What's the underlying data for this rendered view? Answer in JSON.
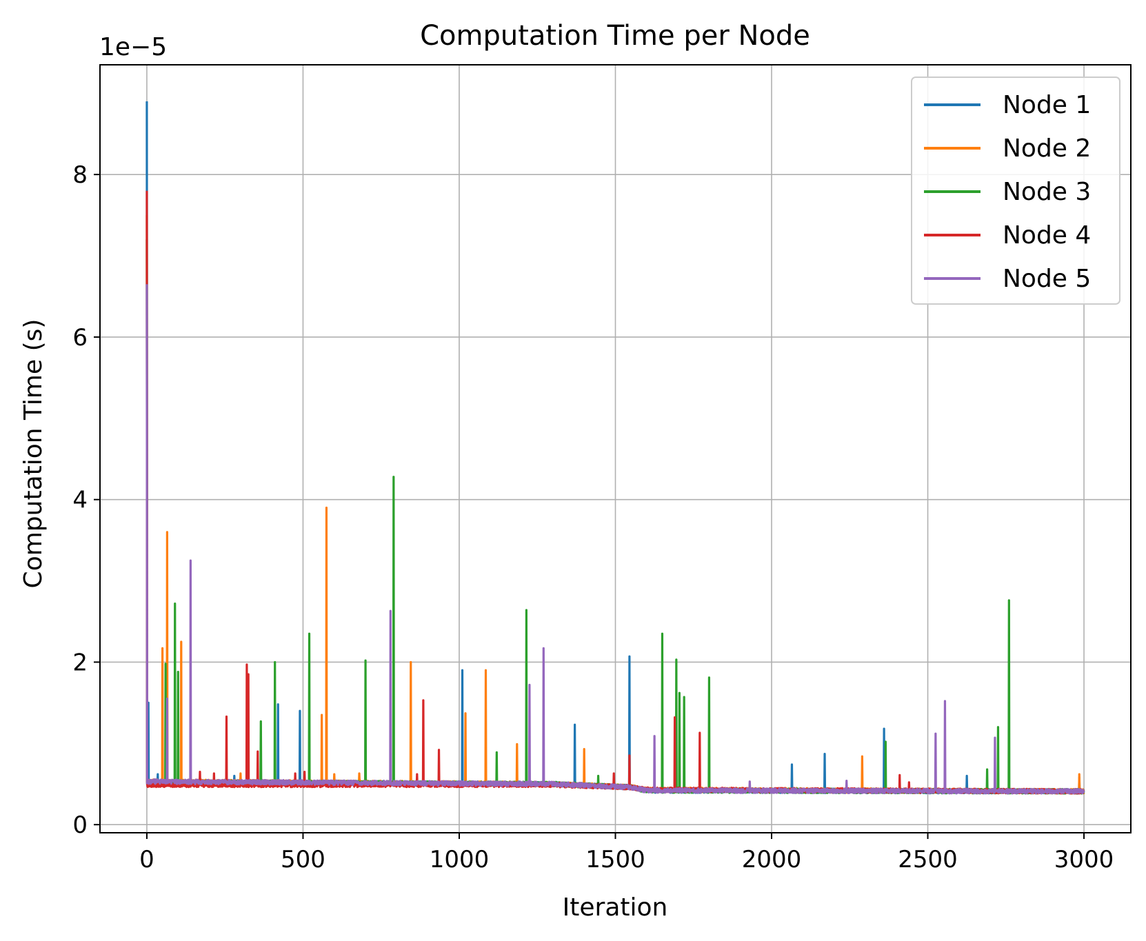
{
  "chart_data": {
    "type": "line",
    "title": "Computation Time per Node",
    "xlabel": "Iteration",
    "ylabel": "Computation Time (s)",
    "y_offset_label": "1e−5",
    "y_scale_factor": 1e-05,
    "xlim": [
      -150,
      3150
    ],
    "ylim": [
      -1e-06,
      9.35e-05
    ],
    "x_ticks": [
      0,
      500,
      1000,
      1500,
      2000,
      2500,
      3000
    ],
    "x_tick_labels": [
      "0",
      "500",
      "1000",
      "1500",
      "2000",
      "2500",
      "3000"
    ],
    "y_ticks": [
      0,
      2e-05,
      4e-05,
      6e-05,
      8e-05
    ],
    "y_tick_labels": [
      "0",
      "2",
      "4",
      "6",
      "8"
    ],
    "grid": true,
    "legend_position": "top-right",
    "n_iterations": 3000,
    "series": [
      {
        "name": "Node 1",
        "color": "#1f77b4",
        "baseline_segments": [
          [
            0,
            5.2e-06
          ],
          [
            1300,
            5e-06
          ],
          [
            1550,
            4.6e-06
          ],
          [
            1600,
            4.2e-06
          ],
          [
            3000,
            4.1e-06
          ]
        ],
        "spikes": [
          [
            0,
            8.9e-05
          ],
          [
            5,
            1.5e-05
          ],
          [
            35,
            6.2e-06
          ],
          [
            280,
            6e-06
          ],
          [
            420,
            1.48e-05
          ],
          [
            490,
            1.4e-05
          ],
          [
            1010,
            1.9e-05
          ],
          [
            1370,
            1.23e-05
          ],
          [
            1545,
            2.07e-05
          ],
          [
            2065,
            7.4e-06
          ],
          [
            2170,
            8.7e-06
          ],
          [
            2360,
            1.18e-05
          ],
          [
            2625,
            6e-06
          ],
          [
            2985,
            5.8e-06
          ]
        ]
      },
      {
        "name": "Node 2",
        "color": "#ff7f0e",
        "baseline_segments": [
          [
            0,
            5.3e-06
          ],
          [
            1300,
            5e-06
          ],
          [
            1550,
            4.6e-06
          ],
          [
            1600,
            4.3e-06
          ],
          [
            3000,
            4.1e-06
          ]
        ],
        "spikes": [
          [
            0,
            7.5e-05
          ],
          [
            50,
            2.17e-05
          ],
          [
            65,
            3.6e-05
          ],
          [
            110,
            2.25e-05
          ],
          [
            300,
            6.3e-06
          ],
          [
            560,
            1.35e-05
          ],
          [
            575,
            3.9e-05
          ],
          [
            600,
            6.2e-06
          ],
          [
            680,
            6.3e-06
          ],
          [
            845,
            2e-05
          ],
          [
            1020,
            1.37e-05
          ],
          [
            1085,
            1.9e-05
          ],
          [
            1185,
            9.9e-06
          ],
          [
            1400,
            9.3e-06
          ],
          [
            2290,
            8.4e-06
          ],
          [
            2985,
            6.2e-06
          ]
        ]
      },
      {
        "name": "Node 3",
        "color": "#2ca02c",
        "baseline_segments": [
          [
            0,
            5.2e-06
          ],
          [
            1300,
            5e-06
          ],
          [
            1550,
            4.6e-06
          ],
          [
            1600,
            4.2e-06
          ],
          [
            3000,
            4.1e-06
          ]
        ],
        "spikes": [
          [
            0,
            7.2e-05
          ],
          [
            60,
            1.98e-05
          ],
          [
            90,
            2.72e-05
          ],
          [
            100,
            1.88e-05
          ],
          [
            365,
            1.27e-05
          ],
          [
            410,
            2e-05
          ],
          [
            520,
            2.35e-05
          ],
          [
            700,
            2.02e-05
          ],
          [
            790,
            4.28e-05
          ],
          [
            1120,
            8.9e-06
          ],
          [
            1215,
            2.64e-05
          ],
          [
            1445,
            6e-06
          ],
          [
            1650,
            2.35e-05
          ],
          [
            1695,
            2.03e-05
          ],
          [
            1705,
            1.62e-05
          ],
          [
            1720,
            1.57e-05
          ],
          [
            1800,
            1.81e-05
          ],
          [
            2365,
            1.02e-05
          ],
          [
            2690,
            6.8e-06
          ],
          [
            2725,
            1.2e-05
          ],
          [
            2760,
            2.76e-05
          ]
        ]
      },
      {
        "name": "Node 4",
        "color": "#d62728",
        "baseline_segments": [
          [
            0,
            4.9e-06
          ],
          [
            1300,
            4.9e-06
          ],
          [
            1550,
            4.6e-06
          ],
          [
            1600,
            4.3e-06
          ],
          [
            3000,
            4.1e-06
          ]
        ],
        "spikes": [
          [
            0,
            7.8e-05
          ],
          [
            170,
            6.5e-06
          ],
          [
            215,
            6.3e-06
          ],
          [
            255,
            1.33e-05
          ],
          [
            320,
            1.97e-05
          ],
          [
            325,
            1.85e-05
          ],
          [
            355,
            9e-06
          ],
          [
            475,
            6.3e-06
          ],
          [
            505,
            6.5e-06
          ],
          [
            865,
            6.2e-06
          ],
          [
            885,
            1.53e-05
          ],
          [
            935,
            9.2e-06
          ],
          [
            1495,
            6.3e-06
          ],
          [
            1545,
            8.5e-06
          ],
          [
            1690,
            1.32e-05
          ],
          [
            1770,
            1.13e-05
          ],
          [
            2410,
            6.1e-06
          ],
          [
            2440,
            5.2e-06
          ]
        ]
      },
      {
        "name": "Node 5",
        "color": "#9467bd",
        "baseline_segments": [
          [
            0,
            5.3e-06
          ],
          [
            1300,
            5e-06
          ],
          [
            1550,
            4.6e-06
          ],
          [
            1600,
            4.2e-06
          ],
          [
            3000,
            4.1e-06
          ]
        ],
        "spikes": [
          [
            0,
            6.65e-05
          ],
          [
            65,
            1.55e-05
          ],
          [
            140,
            3.25e-05
          ],
          [
            780,
            2.63e-05
          ],
          [
            1225,
            1.72e-05
          ],
          [
            1270,
            2.17e-05
          ],
          [
            1625,
            1.09e-05
          ],
          [
            1930,
            5.3e-06
          ],
          [
            2240,
            5.4e-06
          ],
          [
            2525,
            1.12e-05
          ],
          [
            2555,
            1.52e-05
          ],
          [
            2715,
            1.07e-05
          ]
        ]
      }
    ]
  }
}
